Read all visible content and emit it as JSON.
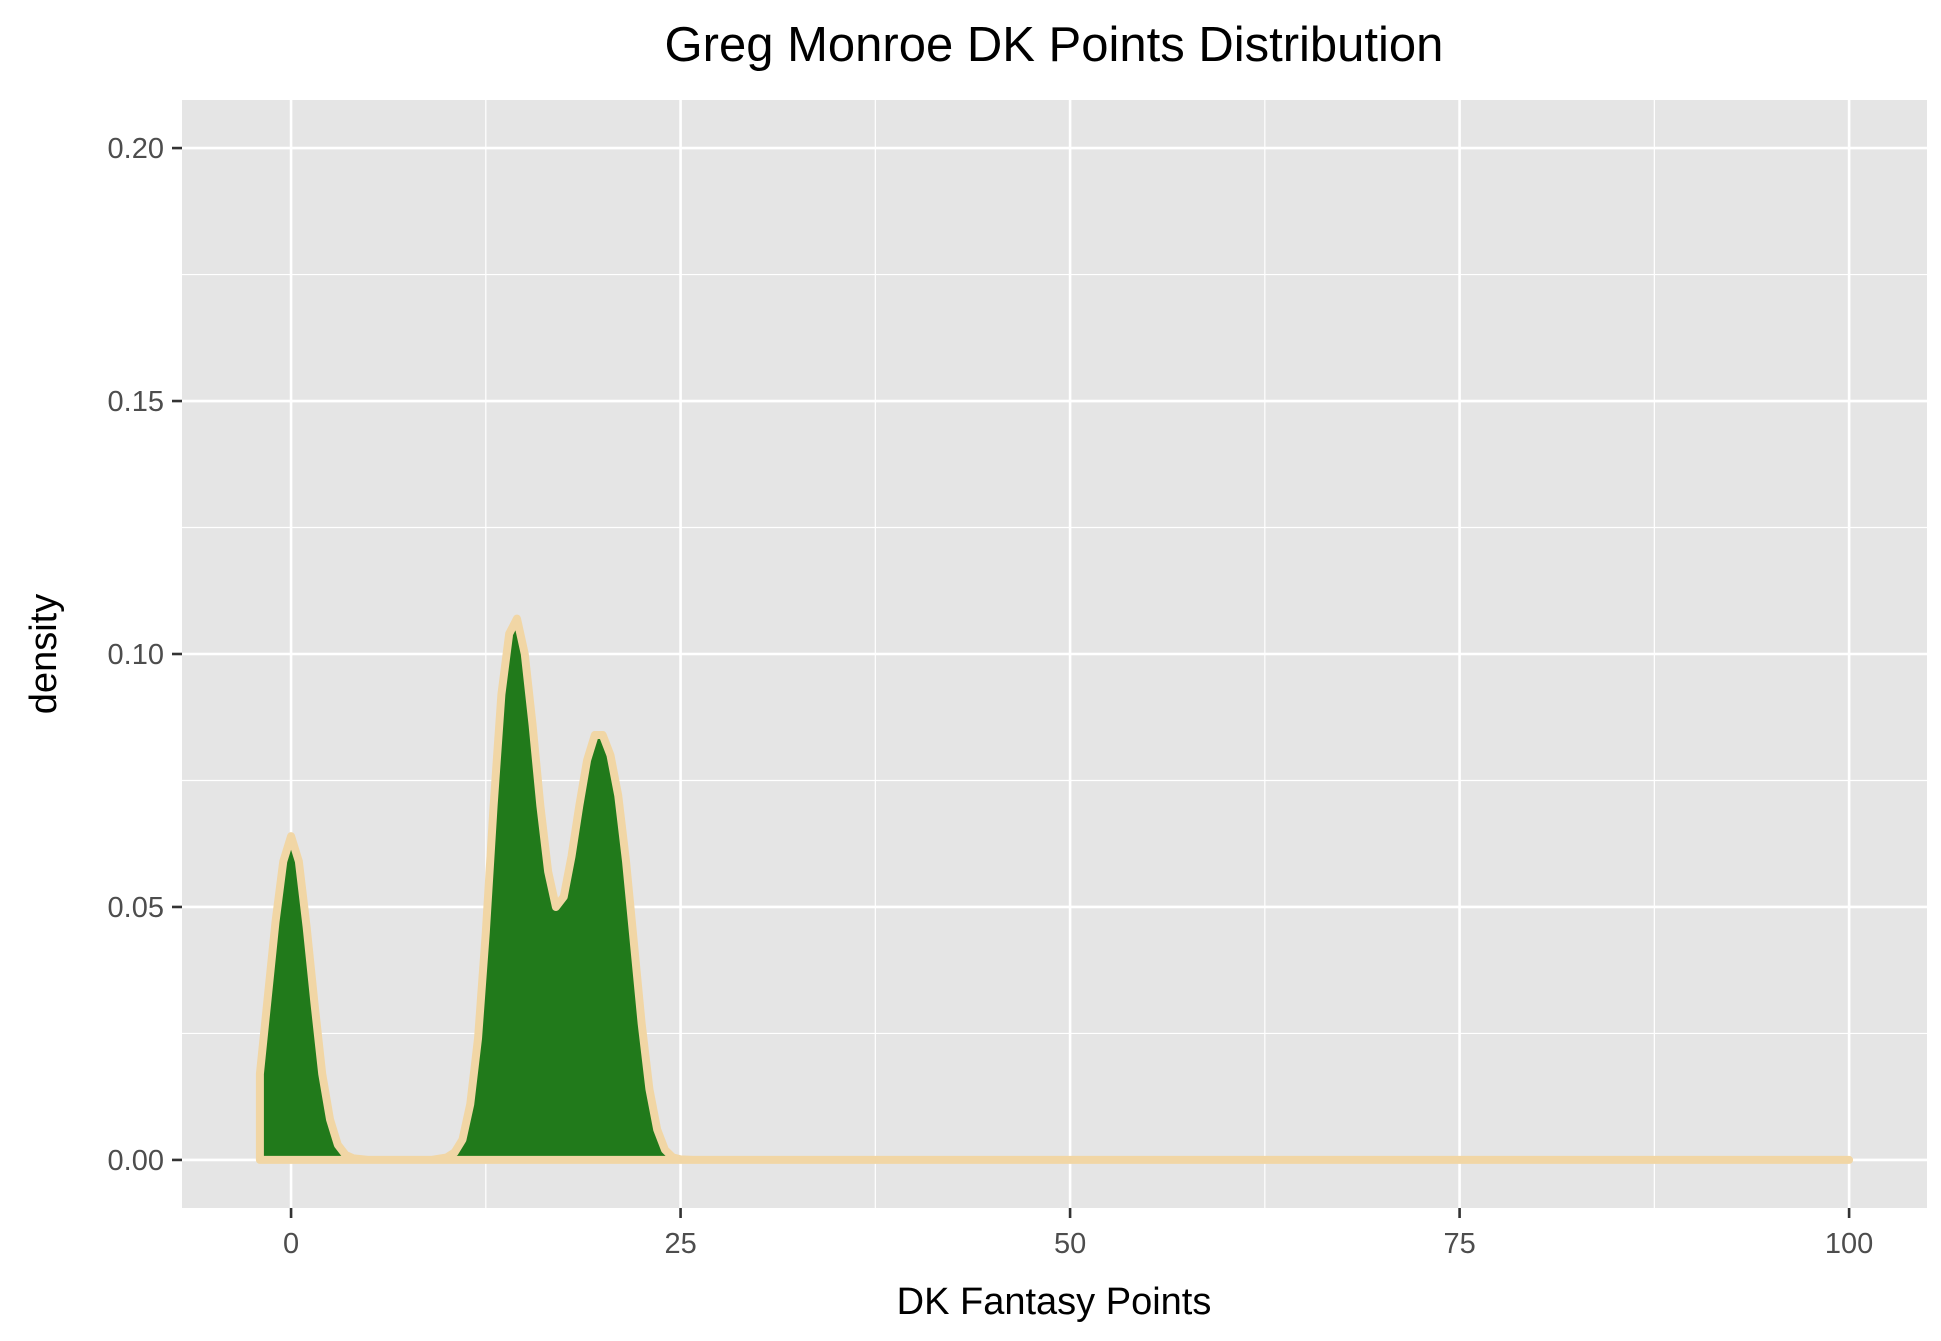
{
  "chart_data": {
    "type": "area",
    "title": "Greg Monroe DK Points Distribution",
    "xlabel": "DK Fantasy Points",
    "ylabel": "density",
    "xlim": [
      -7,
      105
    ],
    "ylim": [
      -0.0095,
      0.2095
    ],
    "x_ticks": [
      0,
      25,
      50,
      75,
      100
    ],
    "x_tick_labels": [
      "0",
      "25",
      "50",
      "75",
      "100"
    ],
    "y_ticks": [
      0,
      0.05,
      0.1,
      0.15,
      0.2
    ],
    "y_tick_labels": [
      "0.00",
      "0.05",
      "0.10",
      "0.15",
      "0.20"
    ],
    "grid": true,
    "legend": "none",
    "colors": {
      "panel": "#e5e5e5",
      "grid": "#ffffff",
      "fill": "#217a1b",
      "outline": "#f1d6a5",
      "tick": "#333333"
    },
    "series": [
      {
        "x": [
          -2,
          -1.5,
          -1,
          -0.5,
          0,
          0.5,
          1,
          1.5,
          2,
          2.5,
          3,
          3.5,
          4,
          5,
          6,
          7,
          8,
          9,
          10,
          10.5,
          11,
          11.5,
          12,
          12.5,
          13,
          13.5,
          14,
          14.5,
          15,
          15.5,
          16,
          16.5,
          17,
          17.5,
          18,
          18.5,
          19,
          19.5,
          20,
          20.5,
          21,
          21.5,
          22,
          22.5,
          23,
          23.5,
          24,
          24.5,
          25,
          26,
          30,
          40,
          50,
          60,
          70,
          80,
          90,
          100
        ],
        "y": [
          0.017,
          0.032,
          0.047,
          0.059,
          0.064,
          0.059,
          0.046,
          0.031,
          0.017,
          0.008,
          0.003,
          0.001,
          0.0003,
          0,
          0,
          0,
          0,
          0,
          0.0005,
          0.0015,
          0.004,
          0.011,
          0.024,
          0.045,
          0.07,
          0.092,
          0.104,
          0.107,
          0.1,
          0.086,
          0.07,
          0.057,
          0.05,
          0.052,
          0.06,
          0.07,
          0.079,
          0.084,
          0.084,
          0.08,
          0.072,
          0.059,
          0.043,
          0.027,
          0.014,
          0.006,
          0.002,
          0.0005,
          0.0001,
          0,
          0,
          0,
          0,
          0,
          0,
          0,
          0,
          0
        ]
      }
    ]
  }
}
